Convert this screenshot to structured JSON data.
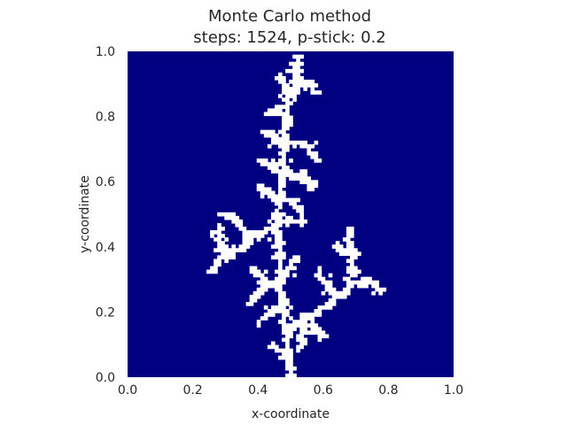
{
  "chart_data": {
    "type": "heatmap",
    "title": "Monte Carlo method",
    "subtitle": "steps: 1524, p-stick: 0.2",
    "xlabel": "x-coordinate",
    "ylabel": "y-coordinate",
    "xlim": [
      0.0,
      1.0
    ],
    "ylim": [
      0.0,
      1.0
    ],
    "x_ticks": [
      "0.0",
      "0.2",
      "0.4",
      "0.6",
      "0.8",
      "1.0"
    ],
    "y_ticks": [
      "0.0",
      "0.2",
      "0.4",
      "0.6",
      "0.8",
      "1.0"
    ],
    "grid": false,
    "background_color": "#000080",
    "cluster_color": "#ffffff",
    "cluster_segments": [
      [
        [
          0.52,
          1.0
        ],
        [
          0.52,
          0.93
        ]
      ],
      [
        [
          0.52,
          0.93
        ],
        [
          0.49,
          0.86
        ],
        [
          0.48,
          0.78
        ],
        [
          0.47,
          0.7
        ],
        [
          0.47,
          0.62
        ],
        [
          0.46,
          0.54
        ],
        [
          0.45,
          0.46
        ],
        [
          0.46,
          0.38
        ],
        [
          0.46,
          0.3
        ],
        [
          0.47,
          0.22
        ],
        [
          0.48,
          0.14
        ],
        [
          0.49,
          0.06
        ],
        [
          0.5,
          0.0
        ]
      ],
      [
        [
          0.49,
          0.86
        ],
        [
          0.47,
          0.9
        ],
        [
          0.46,
          0.92
        ]
      ],
      [
        [
          0.49,
          0.86
        ],
        [
          0.52,
          0.89
        ],
        [
          0.55,
          0.9
        ],
        [
          0.57,
          0.87
        ]
      ],
      [
        [
          0.48,
          0.78
        ],
        [
          0.45,
          0.82
        ],
        [
          0.42,
          0.8
        ]
      ],
      [
        [
          0.47,
          0.7
        ],
        [
          0.44,
          0.73
        ],
        [
          0.42,
          0.75
        ]
      ],
      [
        [
          0.47,
          0.7
        ],
        [
          0.51,
          0.72
        ],
        [
          0.55,
          0.7
        ],
        [
          0.57,
          0.66
        ]
      ],
      [
        [
          0.47,
          0.62
        ],
        [
          0.44,
          0.64
        ],
        [
          0.41,
          0.66
        ]
      ],
      [
        [
          0.47,
          0.62
        ],
        [
          0.51,
          0.62
        ],
        [
          0.54,
          0.6
        ],
        [
          0.57,
          0.58
        ]
      ],
      [
        [
          0.46,
          0.54
        ],
        [
          0.43,
          0.56
        ],
        [
          0.4,
          0.58
        ]
      ],
      [
        [
          0.46,
          0.54
        ],
        [
          0.5,
          0.53
        ],
        [
          0.53,
          0.51
        ]
      ],
      [
        [
          0.45,
          0.46
        ],
        [
          0.41,
          0.44
        ],
        [
          0.37,
          0.42
        ]
      ],
      [
        [
          0.45,
          0.46
        ],
        [
          0.49,
          0.48
        ],
        [
          0.53,
          0.47
        ]
      ],
      [
        [
          0.37,
          0.42
        ],
        [
          0.34,
          0.46
        ],
        [
          0.31,
          0.49
        ],
        [
          0.29,
          0.5
        ]
      ],
      [
        [
          0.37,
          0.42
        ],
        [
          0.34,
          0.39
        ],
        [
          0.3,
          0.37
        ],
        [
          0.27,
          0.35
        ],
        [
          0.25,
          0.32
        ]
      ],
      [
        [
          0.3,
          0.37
        ],
        [
          0.28,
          0.41
        ],
        [
          0.27,
          0.45
        ]
      ],
      [
        [
          0.46,
          0.3
        ],
        [
          0.42,
          0.27
        ],
        [
          0.39,
          0.25
        ],
        [
          0.37,
          0.22
        ]
      ],
      [
        [
          0.42,
          0.27
        ],
        [
          0.4,
          0.31
        ],
        [
          0.38,
          0.33
        ]
      ],
      [
        [
          0.46,
          0.3
        ],
        [
          0.49,
          0.33
        ],
        [
          0.51,
          0.36
        ]
      ],
      [
        [
          0.47,
          0.22
        ],
        [
          0.43,
          0.19
        ],
        [
          0.4,
          0.17
        ]
      ],
      [
        [
          0.48,
          0.14
        ],
        [
          0.52,
          0.16
        ],
        [
          0.56,
          0.18
        ],
        [
          0.6,
          0.21
        ],
        [
          0.64,
          0.24
        ],
        [
          0.67,
          0.27
        ],
        [
          0.7,
          0.29
        ],
        [
          0.74,
          0.29
        ],
        [
          0.77,
          0.26
        ]
      ],
      [
        [
          0.67,
          0.27
        ],
        [
          0.68,
          0.32
        ],
        [
          0.68,
          0.37
        ],
        [
          0.67,
          0.42
        ],
        [
          0.68,
          0.45
        ]
      ],
      [
        [
          0.68,
          0.37
        ],
        [
          0.65,
          0.39
        ],
        [
          0.63,
          0.4
        ]
      ],
      [
        [
          0.64,
          0.24
        ],
        [
          0.61,
          0.28
        ],
        [
          0.59,
          0.3
        ],
        [
          0.58,
          0.33
        ]
      ],
      [
        [
          0.56,
          0.18
        ],
        [
          0.57,
          0.14
        ],
        [
          0.59,
          0.12
        ]
      ],
      [
        [
          0.52,
          0.16
        ],
        [
          0.53,
          0.12
        ],
        [
          0.52,
          0.08
        ]
      ],
      [
        [
          0.49,
          0.06
        ],
        [
          0.46,
          0.08
        ],
        [
          0.44,
          0.09
        ]
      ]
    ]
  }
}
